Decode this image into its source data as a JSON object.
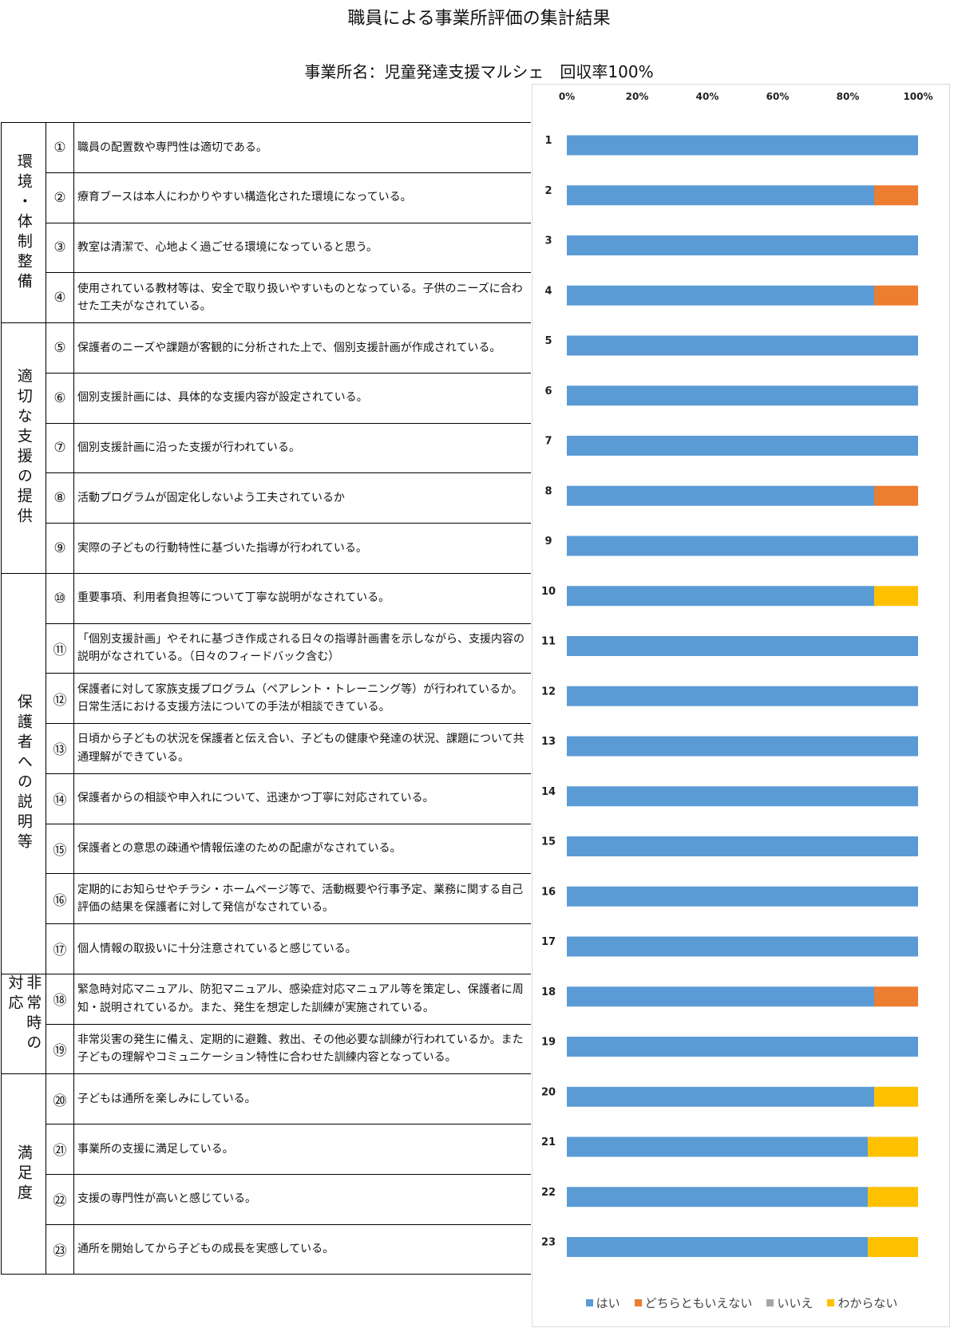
{
  "title": "職員による事業所評価の集計結果",
  "subtitle": "事業所名：児童発達支援マルシェ　回収率100%",
  "categories": [
    {
      "label": "環境・体制整備",
      "start": 0,
      "count": 4
    },
    {
      "label": "適切な支援の提供",
      "start": 4,
      "count": 5
    },
    {
      "label": "保護者への説明等",
      "start": 9,
      "count": 8
    },
    {
      "label": "非常時の対応",
      "start": 17,
      "count": 2
    },
    {
      "label": "満足度",
      "start": 19,
      "count": 4
    }
  ],
  "questions": [
    {
      "num": "①",
      "text": "職員の配置数や専門性は適切である。"
    },
    {
      "num": "②",
      "text": "療育ブースは本人にわかりやすい構造化された環境になっている。"
    },
    {
      "num": "③",
      "text": "教室は清潔で、心地よく過ごせる環境になっていると思う。"
    },
    {
      "num": "④",
      "text": "使用されている教材等は、安全で取り扱いやすいものとなっている。子供のニーズに合わせた工夫がなされている。"
    },
    {
      "num": "⑤",
      "text": "保護者のニーズや課題が客観的に分析された上で、個別支援計画が作成されている。"
    },
    {
      "num": "⑥",
      "text": "個別支援計画には、具体的な支援内容が設定されている。"
    },
    {
      "num": "⑦",
      "text": "個別支援計画に沿った支援が行われている。"
    },
    {
      "num": "⑧",
      "text": "活動プログラムが固定化しないよう工夫されているか"
    },
    {
      "num": "⑨",
      "text": "実際の子どもの行動特性に基づいた指導が行われている。"
    },
    {
      "num": "⑩",
      "text": "重要事項、利用者負担等について丁寧な説明がなされている。"
    },
    {
      "num": "⑪",
      "text": "「個別支援計画」やそれに基づき作成される日々の指導計画書を示しながら、支援内容の説明がなされている。（日々のフィードバック含む）"
    },
    {
      "num": "⑫",
      "text": "保護者に対して家族支援プログラム（ペアレント・トレーニング等）が行われているか。日常生活における支援方法についての手法が相談できている。"
    },
    {
      "num": "⑬",
      "text": "日頃から子どもの状況を保護者と伝え合い、子どもの健康や発達の状況、課題について共通理解ができている。"
    },
    {
      "num": "⑭",
      "text": "保護者からの相談や申入れについて、迅速かつ丁寧に対応されている。"
    },
    {
      "num": "⑮",
      "text": "保護者との意思の疎通や情報伝達のための配慮がなされている。"
    },
    {
      "num": "⑯",
      "text": "定期的にお知らせやチラシ・ホームページ等で、活動概要や行事予定、業務に関する自己評価の結果を保護者に対して発信がなされている。"
    },
    {
      "num": "⑰",
      "text": "個人情報の取扱いに十分注意されていると感じている。"
    },
    {
      "num": "⑱",
      "text": "緊急時対応マニュアル、防犯マニュアル、感染症対応マニュアル等を策定し、保護者に周知・説明されているか。また、発生を想定した訓練が実施されている。"
    },
    {
      "num": "⑲",
      "text": "非常災害の発生に備え、定期的に避難、救出、その他必要な訓練が行われているか。また子どもの理解やコミュニケーション特性に合わせた訓練内容となっている。"
    },
    {
      "num": "⑳",
      "text": "子どもは通所を楽しみにしている。"
    },
    {
      "num": "㉑",
      "text": "事業所の支援に満足している。"
    },
    {
      "num": "㉒",
      "text": "支援の専門性が高いと感じている。"
    },
    {
      "num": "㉓",
      "text": "通所を開始してから子どもの成長を実感している。"
    }
  ],
  "chart_data": {
    "type": "bar",
    "orientation": "horizontal",
    "stacked": true,
    "categories": [
      "1",
      "2",
      "3",
      "4",
      "5",
      "6",
      "7",
      "8",
      "9",
      "10",
      "11",
      "12",
      "13",
      "14",
      "15",
      "16",
      "17",
      "18",
      "19",
      "20",
      "21",
      "22",
      "23"
    ],
    "x_ticks": [
      "0%",
      "20%",
      "40%",
      "60%",
      "80%",
      "100%"
    ],
    "xlim": [
      0,
      100
    ],
    "x_axis_position": "top",
    "grid": false,
    "legend_position": "bottom",
    "series": [
      {
        "name": "はい",
        "color": "#5b9bd5",
        "values": [
          100,
          87.5,
          100,
          87.5,
          100,
          100,
          100,
          87.5,
          100,
          87.5,
          100,
          100,
          100,
          100,
          100,
          100,
          100,
          87.5,
          100,
          87.5,
          85.7,
          85.7,
          85.7
        ]
      },
      {
        "name": "どちらともいえない",
        "color": "#ed7d31",
        "values": [
          0,
          12.5,
          0,
          12.5,
          0,
          0,
          0,
          12.5,
          0,
          0,
          0,
          0,
          0,
          0,
          0,
          0,
          0,
          12.5,
          0,
          0,
          0,
          0,
          0
        ]
      },
      {
        "name": "いいえ",
        "color": "#a5a5a5",
        "values": [
          0,
          0,
          0,
          0,
          0,
          0,
          0,
          0,
          0,
          0,
          0,
          0,
          0,
          0,
          0,
          0,
          0,
          0,
          0,
          0,
          0,
          0,
          0
        ]
      },
      {
        "name": "わからない",
        "color": "#ffc000",
        "values": [
          0,
          0,
          0,
          0,
          0,
          0,
          0,
          0,
          0,
          12.5,
          0,
          0,
          0,
          0,
          0,
          0,
          0,
          0,
          0,
          12.5,
          14.3,
          14.3,
          14.3
        ]
      }
    ]
  }
}
